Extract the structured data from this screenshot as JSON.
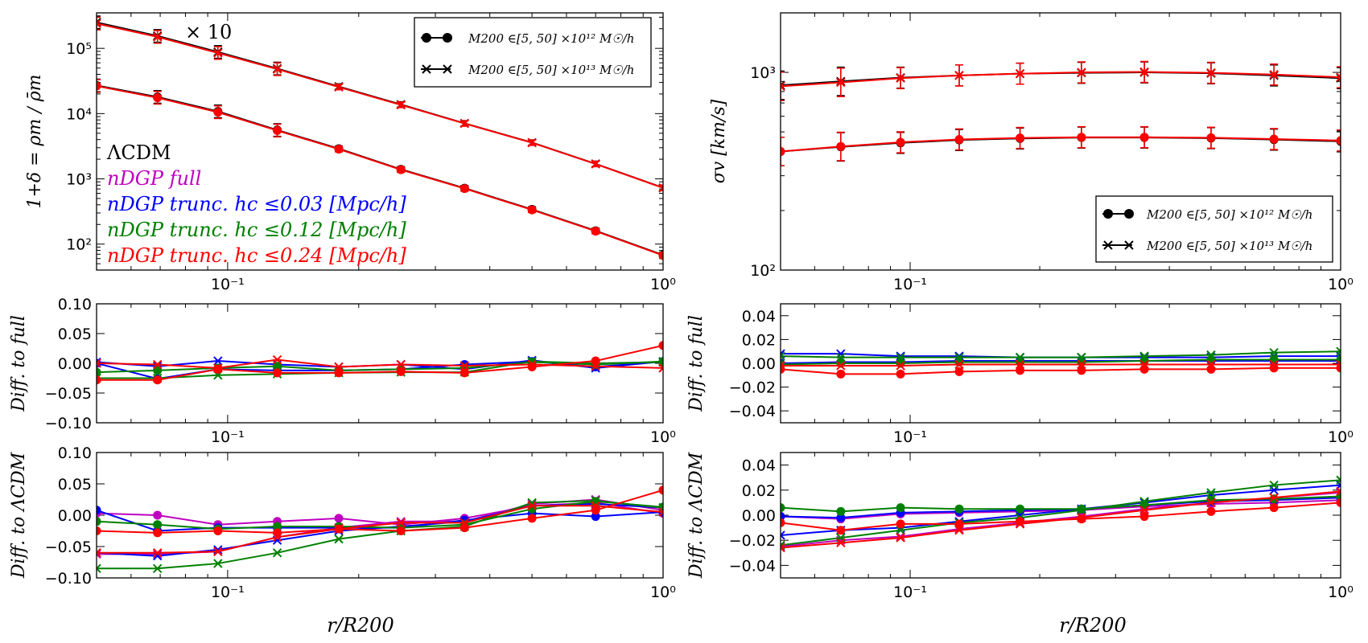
{
  "colors": {
    "black": "#000000",
    "magenta": "#c000c0",
    "blue": "#0000ff",
    "green": "#008000",
    "red": "#ff0000"
  },
  "xlabel": "r/R200",
  "annotations": {
    "times10": "× 10",
    "lcdm": "ΛCDM",
    "full": "nDGP  full",
    "trunc003": "nDGP  trunc. hc ≤0.03 [Mpc/h]",
    "trunc012": "nDGP  trunc. hc ≤0.12 [Mpc/h]",
    "trunc024": "nDGP  trunc. hc ≤0.24 [Mpc/h]"
  },
  "legend": {
    "entry1": "M200 ∈[5, 50] ×10¹² M☉/h",
    "entry2": "M200 ∈[5, 50] ×10¹³ M☉/h"
  },
  "chart_data": [
    {
      "id": "density",
      "type": "line",
      "xscale": "log",
      "yscale": "log",
      "xlim": [
        0.05,
        1.0
      ],
      "ylim": [
        40,
        350000
      ],
      "ylabel": "1+δ = ρm / ρ̄m",
      "xticks": [
        {
          "v": 0.1,
          "label": "10⁻¹"
        },
        {
          "v": 1.0,
          "label": "10⁰"
        }
      ],
      "yticks": [
        {
          "v": 100,
          "label": "10²"
        },
        {
          "v": 1000,
          "label": "10³"
        },
        {
          "v": 10000,
          "label": "10⁴"
        },
        {
          "v": 100000,
          "label": "10⁵"
        }
      ],
      "x": [
        0.05,
        0.069,
        0.095,
        0.13,
        0.18,
        0.25,
        0.35,
        0.5,
        0.7,
        1.0
      ],
      "series": [
        {
          "name": "ΛCDM 10¹³ ×10",
          "color": "black",
          "marker": "x",
          "values": [
            250000,
            155000,
            88000,
            49000,
            26000,
            13800,
            7100,
            3600,
            1700,
            730
          ]
        },
        {
          "name": "nDGP 10¹³ ×10",
          "color": "red",
          "marker": "x",
          "values": [
            240000,
            150000,
            85000,
            48000,
            25500,
            13600,
            7050,
            3580,
            1690,
            725
          ]
        },
        {
          "name": "ΛCDM 10¹²",
          "color": "black",
          "marker": "o",
          "values": [
            27000,
            18000,
            10800,
            5600,
            2900,
            1400,
            720,
            340,
            160,
            68
          ]
        },
        {
          "name": "nDGP 10¹²",
          "color": "red",
          "marker": "o",
          "values": [
            26500,
            17500,
            10500,
            5500,
            2850,
            1380,
            710,
            335,
            158,
            67
          ]
        }
      ]
    },
    {
      "id": "sigma",
      "type": "line",
      "xscale": "log",
      "yscale": "log",
      "xlim": [
        0.05,
        1.0
      ],
      "ylim": [
        100,
        2000
      ],
      "ylabel": "σv [km/s]",
      "xticks": [
        {
          "v": 0.1,
          "label": "10⁻¹"
        },
        {
          "v": 1.0,
          "label": "10⁰"
        }
      ],
      "yticks": [
        {
          "v": 100,
          "label": "10²"
        },
        {
          "v": 1000,
          "label": "10³"
        }
      ],
      "x": [
        0.05,
        0.069,
        0.095,
        0.13,
        0.18,
        0.25,
        0.35,
        0.5,
        0.7,
        1.0
      ],
      "series": [
        {
          "name": "ΛCDM 10¹³",
          "color": "black",
          "marker": "x",
          "values": [
            860,
            900,
            940,
            965,
            985,
            995,
            1000,
            990,
            965,
            935
          ]
        },
        {
          "name": "nDGP 10¹³",
          "color": "red",
          "marker": "x",
          "values": [
            850,
            890,
            935,
            965,
            985,
            1000,
            1005,
            995,
            975,
            945
          ]
        },
        {
          "name": "ΛCDM 10¹²",
          "color": "black",
          "marker": "o",
          "values": [
            398,
            420,
            440,
            455,
            463,
            468,
            468,
            465,
            457,
            448
          ]
        },
        {
          "name": "nDGP 10¹²",
          "color": "red",
          "marker": "o",
          "values": [
            398,
            422,
            443,
            458,
            466,
            470,
            470,
            467,
            460,
            452
          ]
        }
      ]
    },
    {
      "id": "diff-full-left",
      "type": "line",
      "xscale": "log",
      "yscale": "linear",
      "xlim": [
        0.05,
        1.0
      ],
      "ylim": [
        -0.1,
        0.1
      ],
      "ylabel": "Diff. to full",
      "xticks": [
        {
          "v": 0.1,
          "label": "10⁻¹"
        },
        {
          "v": 1.0,
          "label": "10⁰"
        }
      ],
      "yticks": [
        {
          "v": -0.1,
          "label": "−0.10"
        },
        {
          "v": -0.05,
          "label": "−0.05"
        },
        {
          "v": 0.0,
          "label": "0.00"
        },
        {
          "v": 0.05,
          "label": "0.05"
        },
        {
          "v": 0.1,
          "label": "0.10"
        }
      ],
      "x": [
        0.05,
        0.069,
        0.095,
        0.13,
        0.18,
        0.25,
        0.35,
        0.5,
        0.7,
        1.0
      ],
      "series": [
        {
          "name": "trunc 0.03 10¹²",
          "color": "blue",
          "marker": "o",
          "values": [
            0.0,
            -0.026,
            -0.01,
            -0.012,
            -0.012,
            -0.01,
            -0.002,
            0.003,
            -0.006,
            0.003
          ]
        },
        {
          "name": "trunc 0.03 10¹³",
          "color": "blue",
          "marker": "x",
          "values": [
            0.002,
            -0.005,
            0.004,
            -0.002,
            -0.006,
            -0.002,
            -0.01,
            0.005,
            -0.008,
            0.003
          ]
        },
        {
          "name": "trunc 0.12 10¹²",
          "color": "green",
          "marker": "o",
          "values": [
            -0.015,
            -0.012,
            -0.008,
            -0.005,
            -0.012,
            -0.01,
            -0.008,
            0.002,
            -0.002,
            0.003
          ]
        },
        {
          "name": "trunc 0.12 10¹³",
          "color": "green",
          "marker": "x",
          "values": [
            -0.025,
            -0.025,
            -0.02,
            -0.018,
            -0.016,
            -0.015,
            -0.015,
            0.003,
            0.0,
            0.002
          ]
        },
        {
          "name": "trunc 0.24 10¹²",
          "color": "red",
          "marker": "o",
          "values": [
            -0.028,
            -0.028,
            -0.01,
            -0.016,
            -0.016,
            -0.014,
            -0.016,
            -0.006,
            0.004,
            0.03
          ]
        },
        {
          "name": "trunc 0.24 10¹³",
          "color": "red",
          "marker": "x",
          "values": [
            0.0,
            -0.002,
            -0.008,
            0.006,
            -0.006,
            -0.002,
            -0.004,
            -0.002,
            -0.005,
            -0.008
          ]
        }
      ]
    },
    {
      "id": "diff-full-right",
      "type": "line",
      "xscale": "log",
      "yscale": "linear",
      "xlim": [
        0.05,
        1.0
      ],
      "ylim": [
        -0.05,
        0.05
      ],
      "ylabel": "Diff. to full",
      "xticks": [
        {
          "v": 0.1,
          "label": "10⁻¹"
        },
        {
          "v": 1.0,
          "label": "10⁰"
        }
      ],
      "yticks": [
        {
          "v": -0.04,
          "label": "−0.04"
        },
        {
          "v": -0.02,
          "label": "−0.02"
        },
        {
          "v": 0.0,
          "label": "0.00"
        },
        {
          "v": 0.02,
          "label": "0.02"
        },
        {
          "v": 0.04,
          "label": "0.04"
        }
      ],
      "x": [
        0.05,
        0.069,
        0.095,
        0.13,
        0.18,
        0.25,
        0.35,
        0.5,
        0.7,
        1.0
      ],
      "series": [
        {
          "name": "trunc 0.03 10¹²",
          "color": "blue",
          "marker": "o",
          "values": [
            0.0,
            0.001,
            0.001,
            0.002,
            0.002,
            0.002,
            0.002,
            0.002,
            0.002,
            0.002
          ]
        },
        {
          "name": "trunc 0.03 10¹³",
          "color": "blue",
          "marker": "x",
          "values": [
            0.008,
            0.008,
            0.006,
            0.006,
            0.005,
            0.005,
            0.005,
            0.005,
            0.006,
            0.006
          ]
        },
        {
          "name": "trunc 0.12 10¹²",
          "color": "green",
          "marker": "o",
          "values": [
            -0.001,
            0.0,
            0.0,
            0.001,
            0.001,
            0.001,
            0.002,
            0.003,
            0.003,
            0.003
          ]
        },
        {
          "name": "trunc 0.12 10¹³",
          "color": "green",
          "marker": "x",
          "values": [
            0.006,
            0.005,
            0.005,
            0.005,
            0.005,
            0.005,
            0.006,
            0.007,
            0.009,
            0.01
          ]
        },
        {
          "name": "trunc 0.24 10¹²",
          "color": "red",
          "marker": "o",
          "values": [
            -0.005,
            -0.009,
            -0.009,
            -0.007,
            -0.006,
            -0.006,
            -0.005,
            -0.005,
            -0.004,
            -0.004
          ]
        },
        {
          "name": "trunc 0.24 10¹³",
          "color": "red",
          "marker": "x",
          "values": [
            -0.002,
            -0.002,
            -0.002,
            -0.001,
            -0.001,
            -0.001,
            -0.001,
            -0.001,
            -0.001,
            -0.001
          ]
        }
      ]
    },
    {
      "id": "diff-lcdm-left",
      "type": "line",
      "xscale": "log",
      "yscale": "linear",
      "xlim": [
        0.05,
        1.0
      ],
      "ylim": [
        -0.1,
        0.1
      ],
      "ylabel": "Diff. to ΛCDM",
      "xticks": [
        {
          "v": 0.1,
          "label": "10⁻¹"
        },
        {
          "v": 1.0,
          "label": "10⁰"
        }
      ],
      "yticks": [
        {
          "v": -0.1,
          "label": "−0.10"
        },
        {
          "v": -0.05,
          "label": "−0.05"
        },
        {
          "v": 0.0,
          "label": "0.00"
        },
        {
          "v": 0.05,
          "label": "0.05"
        },
        {
          "v": 0.1,
          "label": "0.10"
        }
      ],
      "x": [
        0.05,
        0.069,
        0.095,
        0.13,
        0.18,
        0.25,
        0.35,
        0.5,
        0.7,
        1.0
      ],
      "series": [
        {
          "name": "full 10¹²",
          "color": "magenta",
          "marker": "o",
          "values": [
            0.003,
            0.0,
            -0.015,
            -0.01,
            -0.005,
            -0.015,
            -0.005,
            0.015,
            0.02,
            0.003
          ]
        },
        {
          "name": "full 10¹³",
          "color": "magenta",
          "marker": "x",
          "values": [
            -0.062,
            -0.062,
            -0.058,
            -0.035,
            -0.02,
            -0.01,
            -0.01,
            0.018,
            0.025,
            0.008
          ]
        },
        {
          "name": "trunc 0.03 10¹²",
          "color": "blue",
          "marker": "o",
          "values": [
            0.008,
            -0.025,
            -0.02,
            -0.02,
            -0.02,
            -0.02,
            -0.008,
            0.003,
            -0.002,
            0.005
          ]
        },
        {
          "name": "trunc 0.03 10¹³",
          "color": "blue",
          "marker": "x",
          "values": [
            -0.06,
            -0.065,
            -0.055,
            -0.04,
            -0.025,
            -0.018,
            -0.01,
            0.015,
            0.018,
            0.012
          ]
        },
        {
          "name": "trunc 0.12 10¹²",
          "color": "green",
          "marker": "o",
          "values": [
            -0.01,
            -0.015,
            -0.022,
            -0.018,
            -0.018,
            -0.02,
            -0.015,
            0.01,
            0.022,
            0.013
          ]
        },
        {
          "name": "trunc 0.12 10¹³",
          "color": "green",
          "marker": "x",
          "values": [
            -0.085,
            -0.085,
            -0.077,
            -0.06,
            -0.038,
            -0.025,
            -0.018,
            0.02,
            0.023,
            0.012
          ]
        },
        {
          "name": "trunc 0.24 10¹²",
          "color": "red",
          "marker": "o",
          "values": [
            -0.025,
            -0.028,
            -0.025,
            -0.028,
            -0.022,
            -0.025,
            -0.02,
            -0.005,
            0.008,
            0.04
          ]
        },
        {
          "name": "trunc 0.24 10¹³",
          "color": "red",
          "marker": "x",
          "values": [
            -0.06,
            -0.06,
            -0.058,
            -0.035,
            -0.022,
            -0.012,
            -0.012,
            0.015,
            0.015,
            0.005
          ]
        }
      ]
    },
    {
      "id": "diff-lcdm-right",
      "type": "line",
      "xscale": "log",
      "yscale": "linear",
      "xlim": [
        0.05,
        1.0
      ],
      "ylim": [
        -0.05,
        0.05
      ],
      "ylabel": "Diff. to ΛCDM",
      "xticks": [
        {
          "v": 0.1,
          "label": "10⁻¹"
        },
        {
          "v": 1.0,
          "label": "10⁰"
        }
      ],
      "yticks": [
        {
          "v": -0.04,
          "label": "−0.04"
        },
        {
          "v": -0.02,
          "label": "−0.02"
        },
        {
          "v": 0.0,
          "label": "0.00"
        },
        {
          "v": 0.02,
          "label": "0.02"
        },
        {
          "v": 0.04,
          "label": "0.04"
        }
      ],
      "x": [
        0.05,
        0.069,
        0.095,
        0.13,
        0.18,
        0.25,
        0.35,
        0.5,
        0.7,
        1.0
      ],
      "series": [
        {
          "name": "full 10¹²",
          "color": "magenta",
          "marker": "o",
          "values": [
            -0.001,
            -0.003,
            0.001,
            0.002,
            0.003,
            0.004,
            0.007,
            0.009,
            0.01,
            0.012
          ]
        },
        {
          "name": "full 10¹³",
          "color": "magenta",
          "marker": "x",
          "values": [
            -0.025,
            -0.02,
            -0.017,
            -0.011,
            -0.006,
            -0.001,
            0.005,
            0.01,
            0.014,
            0.018
          ]
        },
        {
          "name": "trunc 0.03 10¹²",
          "color": "blue",
          "marker": "o",
          "values": [
            -0.001,
            -0.002,
            0.002,
            0.003,
            0.004,
            0.005,
            0.008,
            0.011,
            0.012,
            0.014
          ]
        },
        {
          "name": "trunc 0.03 10¹³",
          "color": "blue",
          "marker": "x",
          "values": [
            -0.016,
            -0.012,
            -0.01,
            -0.005,
            0.0,
            0.005,
            0.01,
            0.016,
            0.02,
            0.024
          ]
        },
        {
          "name": "trunc 0.12 10¹²",
          "color": "green",
          "marker": "o",
          "values": [
            0.006,
            0.003,
            0.006,
            0.005,
            0.005,
            0.005,
            0.008,
            0.012,
            0.013,
            0.015
          ]
        },
        {
          "name": "trunc 0.12 10¹³",
          "color": "green",
          "marker": "x",
          "values": [
            -0.024,
            -0.018,
            -0.012,
            -0.006,
            -0.002,
            0.004,
            0.011,
            0.018,
            0.024,
            0.028
          ]
        },
        {
          "name": "trunc 0.24 10¹²",
          "color": "red",
          "marker": "o",
          "values": [
            -0.006,
            -0.012,
            -0.007,
            -0.007,
            -0.005,
            -0.003,
            -0.001,
            0.003,
            0.006,
            0.01
          ]
        },
        {
          "name": "trunc 0.24 10¹³",
          "color": "red",
          "marker": "x",
          "values": [
            -0.026,
            -0.022,
            -0.018,
            -0.012,
            -0.007,
            -0.002,
            0.004,
            0.01,
            0.014,
            0.019
          ]
        }
      ]
    }
  ]
}
